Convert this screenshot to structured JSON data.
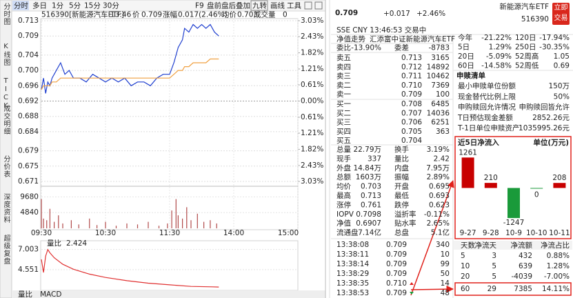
{
  "toolbar": {
    "left": [
      "分时",
      "多日",
      "1分",
      "5分",
      "15分",
      "30分"
    ],
    "right": [
      "F9",
      "盘前盘后",
      "叠加",
      "九转",
      "画线",
      "工具"
    ]
  },
  "sidebar_tabs": [
    "分时图",
    "K线图",
    "TICK",
    "成交明细",
    "分价表",
    "深度资料",
    "超级复盘"
  ],
  "bottom_tabs": [
    "量比",
    "MACD"
  ],
  "chart_data": [
    {
      "type": "line",
      "info": [
        "516390[新能源汽车ETF]",
        "13:46",
        "价",
        "0.709",
        "涨幅",
        "0.017(2.46%)",
        "均价",
        "0.703",
        "成交量",
        "0"
      ],
      "x": [
        0,
        2,
        4,
        6,
        8,
        10,
        14,
        18,
        22,
        26,
        30,
        36,
        42,
        48,
        54,
        60,
        66,
        72,
        78,
        84,
        90,
        96,
        102,
        108,
        114,
        120,
        124,
        128,
        132,
        134,
        138,
        142,
        146,
        150,
        154,
        158,
        162,
        166
      ],
      "series": [
        {
          "color": "#1f3fcf",
          "values": [
            0.695,
            0.698,
            0.694,
            0.697,
            0.696,
            0.698,
            0.7,
            0.702,
            0.699,
            0.7,
            0.698,
            0.698,
            0.697,
            0.699,
            0.698,
            0.697,
            0.698,
            0.697,
            0.698,
            0.696,
            0.697,
            0.697,
            0.696,
            0.698,
            0.699,
            0.699,
            0.702,
            0.706,
            0.708,
            0.711,
            0.71,
            0.712,
            0.711,
            0.712,
            0.711,
            0.712,
            0.71,
            0.709
          ]
        },
        {
          "color": "#f0a040",
          "values": [
            0.695,
            0.696,
            0.696,
            0.696,
            0.696,
            0.697,
            0.697,
            0.698,
            0.698,
            0.698,
            0.698,
            0.698,
            0.698,
            0.698,
            0.698,
            0.698,
            0.698,
            0.698,
            0.698,
            0.698,
            0.698,
            0.698,
            0.698,
            0.698,
            0.698,
            0.698,
            0.699,
            0.7,
            0.7,
            0.701,
            0.701,
            0.702,
            0.702,
            0.702,
            0.702,
            0.703,
            0.703,
            0.703
          ]
        }
      ],
      "xlim": [
        0,
        240
      ],
      "xticks": [
        {
          "value": 0,
          "label": "09:30"
        },
        {
          "value": 60,
          "label": "10:30"
        },
        {
          "value": 120,
          "label": "11:30"
        },
        {
          "value": 180,
          "label": "14:00"
        },
        {
          "value": 240,
          "label": "15:00"
        }
      ],
      "ylim": [
        0.671,
        0.713
      ],
      "yticks": [
        0.713,
        0.709,
        0.704,
        {
          "value": 0.7,
          "label": "0.700"
        },
        0.696,
        0.692,
        0.688,
        0.684,
        0.679,
        0.675,
        0.671
      ],
      "y2lim": [
        -3.03,
        3.03
      ],
      "y2ticks": [
        {
          "value": 3.03,
          "label": "3.03%"
        },
        {
          "value": 2.43,
          "label": "2.43%"
        },
        {
          "value": 1.82,
          "label": "1.82%"
        },
        {
          "value": 1.21,
          "label": "1.21%"
        },
        {
          "value": 0.61,
          "label": "0.61%"
        },
        {
          "value": 0,
          "label": "0.00%"
        },
        {
          "value": -0.61,
          "label": "0.61%"
        },
        {
          "value": -1.21,
          "label": "1.21%"
        },
        {
          "value": -1.82,
          "label": "1.82%"
        },
        {
          "value": -2.43,
          "label": "2.43%"
        },
        {
          "value": -3.03,
          "label": "3.03%"
        }
      ],
      "grid": true
    },
    {
      "type": "bar",
      "x": [
        0,
        2,
        5,
        8,
        12,
        16,
        20,
        28,
        35,
        45,
        52,
        60,
        70,
        80,
        90,
        100,
        110,
        118,
        122,
        126,
        128,
        132,
        136,
        140,
        146,
        152,
        158,
        164
      ],
      "values": [
        9000,
        3000,
        2500,
        6000,
        2000,
        4000,
        1500,
        2500,
        1200,
        3000,
        1000,
        2000,
        800,
        1500,
        1200,
        2000,
        800,
        1500,
        5500,
        9000,
        4000,
        3000,
        6500,
        2500,
        4500,
        2000,
        2500,
        1500
      ],
      "xlim": [
        0,
        240
      ],
      "ylim": [
        0,
        12100
      ],
      "yticks": [
        9680,
        4840
      ],
      "color": "#b04848",
      "grid": true
    },
    {
      "type": "line",
      "label": "量比",
      "value_label": "2.424",
      "x": [
        0,
        2,
        4,
        6,
        8,
        12,
        20,
        30,
        45,
        60,
        80,
        100,
        120,
        140,
        160,
        166
      ],
      "values": [
        5.8,
        4.2,
        6.2,
        7.0,
        6.6,
        6.0,
        5.2,
        4.6,
        4.0,
        3.6,
        3.2,
        2.9,
        2.7,
        2.5,
        2.45,
        2.424
      ],
      "xlim": [
        0,
        240
      ],
      "ylim": [
        2.1,
        7.9
      ],
      "yticks": [
        7.003,
        4.551
      ],
      "color": "#e03030"
    },
    {
      "type": "bar",
      "title": "近5日净流入",
      "unit": "单位(万元)",
      "categories": [
        "9-27",
        "9-28",
        "10-9",
        "10-10",
        "10-11"
      ],
      "values": [
        1261,
        210,
        -1247,
        0,
        208
      ],
      "ylim": [
        -1500,
        1500
      ],
      "up_color": "#c80000",
      "down_color": "#1a9a3a"
    }
  ],
  "header": {
    "price": "0.709",
    "change": "+0.017",
    "change_pct": "+2.46%",
    "name": "新能源汽车ETF",
    "code": "516390",
    "trade_button": "立即交易",
    "status": "SSE  CNY  13:46:53  交易中"
  },
  "fund_line": [
    "净值走势",
    "汇添富中证新能源汽车ETF"
  ],
  "period_returns": [
    [
      "今年",
      "-21.22%",
      "120日",
      "-17.94%"
    ],
    [
      "5日",
      "1.29%",
      "250日",
      "-30.35%"
    ],
    [
      "20日",
      "-5.09%",
      "52周高",
      "1.05"
    ],
    [
      "60日",
      "-14.58%",
      "52周低",
      "0.69"
    ]
  ],
  "order_ratio": [
    "委比",
    "-13.90%",
    "委差",
    "-8783"
  ],
  "order_book": [
    [
      "卖五",
      "0.713",
      "3165"
    ],
    [
      "卖四",
      "0.712",
      "14892"
    ],
    [
      "卖三",
      "0.711",
      "10462"
    ],
    [
      "卖二",
      "0.710",
      "7369"
    ],
    [
      "卖一",
      "0.709",
      "100"
    ],
    [
      "买一",
      "0.708",
      "6485"
    ],
    [
      "买二",
      "0.707",
      "14036"
    ],
    [
      "买三",
      "0.706",
      "6251"
    ],
    [
      "买四",
      "0.705",
      "363"
    ],
    [
      "买五",
      "0.704"
    ]
  ],
  "stats": [
    [
      "总量",
      "22.79万",
      "换手",
      "3.19%"
    ],
    [
      "现手",
      "337",
      "量比",
      "2.42"
    ],
    [
      "外盘",
      "14.84万",
      "内盘",
      "7.95万"
    ],
    [
      "总额",
      "1603万",
      "振幅",
      "2.89%"
    ],
    [
      "均价",
      "0.703",
      "开盘",
      "0.695"
    ],
    [
      "最高",
      "0.713",
      "最低",
      "0.693"
    ],
    [
      "涨停",
      "0.761",
      "跌停",
      "0.623"
    ],
    [
      "IOPV",
      "0.7098",
      "溢折率",
      "-0.11%"
    ],
    [
      "净值",
      "0.6907",
      "贴水率",
      "2.65%"
    ],
    [
      "流通盘",
      "7.14亿",
      "总盘",
      "5.1亿"
    ]
  ],
  "trades": [
    [
      "13:38:08",
      "0.709",
      "340"
    ],
    [
      "13:38:11",
      "0.709",
      "10"
    ],
    [
      "13:38:14",
      "0.709",
      "99"
    ],
    [
      "13:38:29",
      "0.709",
      "50"
    ],
    [
      "13:38:35",
      "0.710",
      "14"
    ],
    [
      "13:38:53",
      "0.709",
      "48"
    ]
  ],
  "redemption": {
    "title": "申赎清单",
    "rows": [
      [
        "最小申赎单位份额",
        "150万"
      ],
      [
        "现金替代比例上限",
        "50%"
      ],
      [
        "申购赎回允许情况",
        "申购赎回皆允许"
      ],
      [
        "T日预估现金差额",
        "2852.26元"
      ],
      [
        "T-1日单位申赎资产",
        "1035995.26元"
      ]
    ]
  },
  "inflow_table": {
    "header": [
      "天数",
      "净流天",
      "净流额",
      "净流占比"
    ],
    "rows": [
      [
        "5",
        "3",
        "432",
        "0.88%"
      ],
      [
        "10",
        "5",
        "639",
        "1.28%"
      ],
      [
        "20",
        "5",
        "-4039",
        "-7.00%"
      ],
      [
        "60",
        "29",
        "7385",
        "14.11%"
      ]
    ]
  }
}
